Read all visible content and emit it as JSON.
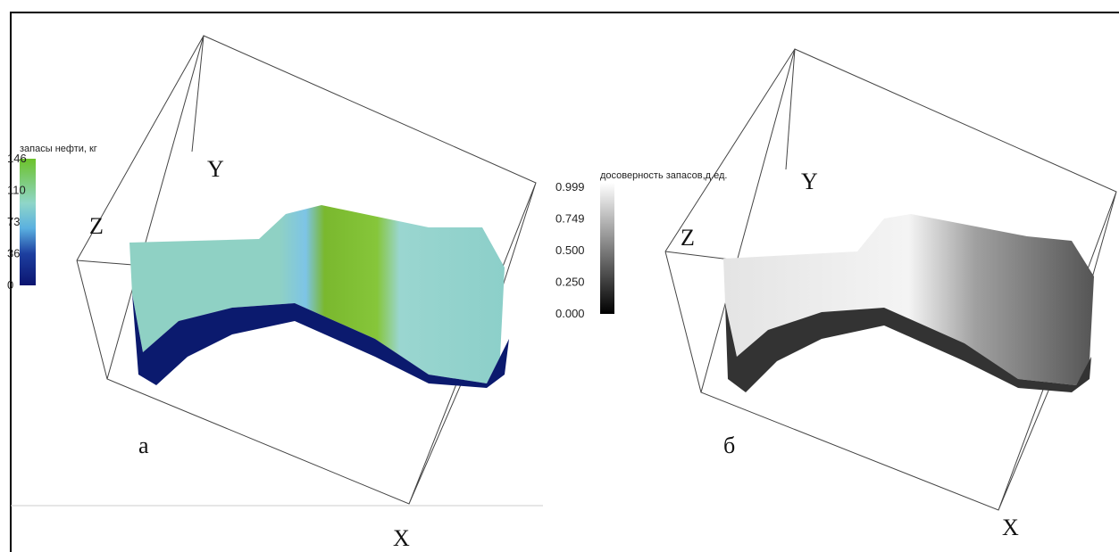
{
  "panels": [
    {
      "label": "а",
      "colorbar": {
        "title": "запасы нефти, кг",
        "ticks": [
          "146",
          "110",
          "73",
          "36",
          "0"
        ]
      },
      "axes": {
        "z": "Z",
        "y": "Y",
        "x": "X"
      }
    },
    {
      "label": "б",
      "colorbar": {
        "title": "досоверность запасов,д.ед.",
        "ticks": [
          "0.999",
          "0.749",
          "0.500",
          "0.250",
          "0.000"
        ]
      },
      "axes": {
        "z": "Z",
        "y": "Y",
        "x": "X"
      }
    }
  ]
}
